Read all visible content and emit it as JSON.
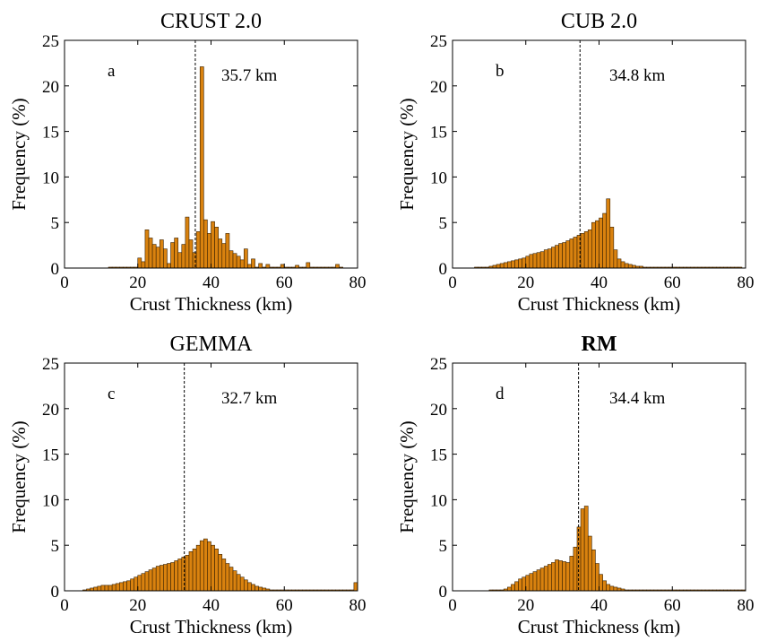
{
  "chart_data": [
    {
      "type": "bar",
      "title": "CRUST 2.0",
      "title_bold": false,
      "panel_letter": "a",
      "mean_label": "35.7 km",
      "mean_value": 35.7,
      "xlabel": "Crust Thickness (km)",
      "ylabel": "Frequency (%)",
      "xlim": [
        0,
        80
      ],
      "ylim": [
        0,
        25
      ],
      "xticks": [
        "0",
        "20",
        "40",
        "60",
        "80"
      ],
      "yticks": [
        "0",
        "5",
        "10",
        "15",
        "20",
        "25"
      ],
      "bin_width": 1,
      "bin_start": 12,
      "values": [
        0.1,
        0.1,
        0.1,
        0.1,
        0.1,
        0.1,
        0.1,
        0.1,
        1.1,
        0.7,
        4.2,
        3.3,
        2.6,
        2.3,
        3.1,
        2.1,
        0.5,
        2.8,
        3.3,
        1.7,
        2.6,
        5.6,
        3.1,
        1.7,
        4.0,
        22.1,
        5.3,
        3.8,
        5.1,
        4.5,
        3.2,
        2.7,
        3.8,
        1.9,
        1.6,
        1.3,
        0.9,
        2.1,
        0.4,
        1.0,
        0.1,
        0.5,
        0.1,
        0.4,
        0.1,
        0.1,
        0.1,
        0.4,
        0.1,
        0.1,
        0.1,
        0.3,
        0.1,
        0.1,
        0.6,
        0.1,
        0.1,
        0.1,
        0.1,
        0.1,
        0.1,
        0.1,
        0.4,
        0.1
      ]
    },
    {
      "type": "bar",
      "title": "CUB 2.0",
      "title_bold": false,
      "panel_letter": "b",
      "mean_label": "34.8 km",
      "mean_value": 34.8,
      "xlabel": "Crust Thickness (km)",
      "ylabel": "Frequency (%)",
      "xlim": [
        0,
        80
      ],
      "ylim": [
        0,
        25
      ],
      "xticks": [
        "0",
        "20",
        "40",
        "60",
        "80"
      ],
      "yticks": [
        "0",
        "5",
        "10",
        "15",
        "20",
        "25"
      ],
      "bin_width": 1,
      "bin_start": 6,
      "values": [
        0.1,
        0.1,
        0.1,
        0.1,
        0.2,
        0.3,
        0.4,
        0.5,
        0.6,
        0.7,
        0.8,
        0.9,
        1.0,
        1.1,
        1.3,
        1.5,
        1.6,
        1.7,
        1.8,
        2.0,
        2.1,
        2.3,
        2.5,
        2.7,
        2.8,
        3.0,
        3.2,
        3.4,
        3.6,
        3.8,
        4.0,
        4.2,
        5.0,
        5.2,
        5.5,
        6.0,
        7.6,
        4.5,
        2.0,
        1.0,
        0.7,
        0.5,
        0.4,
        0.3,
        0.2,
        0.2,
        0.1,
        0.1,
        0.1,
        0.1,
        0.1,
        0.1,
        0.1,
        0.1,
        0.1,
        0.1,
        0.1,
        0.1,
        0.1,
        0.1,
        0.1,
        0.1,
        0.1,
        0.1,
        0.1,
        0.1,
        0.1,
        0.1,
        0.1,
        0.1,
        0.1,
        0.1,
        0.1
      ]
    },
    {
      "type": "bar",
      "title": "GEMMA",
      "title_bold": false,
      "panel_letter": "c",
      "mean_label": "32.7 km",
      "mean_value": 32.7,
      "xlabel": "Crust Thickness (km)",
      "ylabel": "Frequency (%)",
      "xlim": [
        0,
        80
      ],
      "ylim": [
        0,
        25
      ],
      "xticks": [
        "0",
        "20",
        "40",
        "60",
        "80"
      ],
      "yticks": [
        "0",
        "5",
        "10",
        "15",
        "20",
        "25"
      ],
      "bin_width": 1,
      "bin_start": 5,
      "values": [
        0.1,
        0.2,
        0.3,
        0.4,
        0.5,
        0.6,
        0.6,
        0.6,
        0.7,
        0.8,
        0.9,
        1.0,
        1.1,
        1.3,
        1.5,
        1.7,
        1.9,
        2.1,
        2.3,
        2.5,
        2.7,
        2.8,
        2.9,
        3.0,
        3.1,
        3.3,
        3.5,
        3.7,
        3.9,
        4.3,
        4.6,
        5.0,
        5.5,
        5.7,
        5.4,
        5.0,
        4.6,
        4.0,
        3.5,
        3.0,
        2.6,
        2.2,
        1.8,
        1.5,
        1.2,
        0.9,
        0.7,
        0.5,
        0.4,
        0.3,
        0.2,
        0.1,
        0.1,
        0.1,
        0.1,
        0.1,
        0.1,
        0.1,
        0.1,
        0.1,
        0.1,
        0.1,
        0.1,
        0.1,
        0.1,
        0.1,
        0.1,
        0.1,
        0.1,
        0.1,
        0.1,
        0.1,
        0.1,
        0.1,
        0.9
      ]
    },
    {
      "type": "bar",
      "title": "RM",
      "title_bold": true,
      "panel_letter": "d",
      "mean_label": "34.4 km",
      "mean_value": 34.4,
      "xlabel": "Crust Thickness (km)",
      "ylabel": "Frequency (%)",
      "xlim": [
        0,
        80
      ],
      "ylim": [
        0,
        25
      ],
      "xticks": [
        "0",
        "20",
        "40",
        "60",
        "80"
      ],
      "yticks": [
        "0",
        "5",
        "10",
        "15",
        "20",
        "25"
      ],
      "bin_width": 1,
      "bin_start": 10,
      "values": [
        0.1,
        0.1,
        0.1,
        0.1,
        0.2,
        0.4,
        0.7,
        1.0,
        1.3,
        1.5,
        1.7,
        1.9,
        2.1,
        2.3,
        2.5,
        2.7,
        2.9,
        3.1,
        3.4,
        3.3,
        3.2,
        3.1,
        3.8,
        4.8,
        7.0,
        9.0,
        9.3,
        6.0,
        4.5,
        3.0,
        1.8,
        1.1,
        0.7,
        0.5,
        0.4,
        0.3,
        0.2,
        0.1,
        0.1,
        0.1,
        0.1,
        0.1,
        0.1,
        0.1,
        0.1,
        0.1,
        0.1,
        0.1,
        0.1,
        0.1,
        0.1,
        0.1,
        0.1,
        0.1,
        0.1,
        0.1,
        0.1,
        0.1,
        0.1,
        0.1,
        0.1,
        0.1,
        0.1,
        0.1,
        0.1,
        0.1,
        0.1,
        0.1,
        0.1,
        0.1
      ]
    }
  ],
  "colors": {
    "bar_fill": "#d9820f",
    "bar_edge": "#3a2100",
    "axis": "#000000",
    "background": "#ffffff"
  }
}
